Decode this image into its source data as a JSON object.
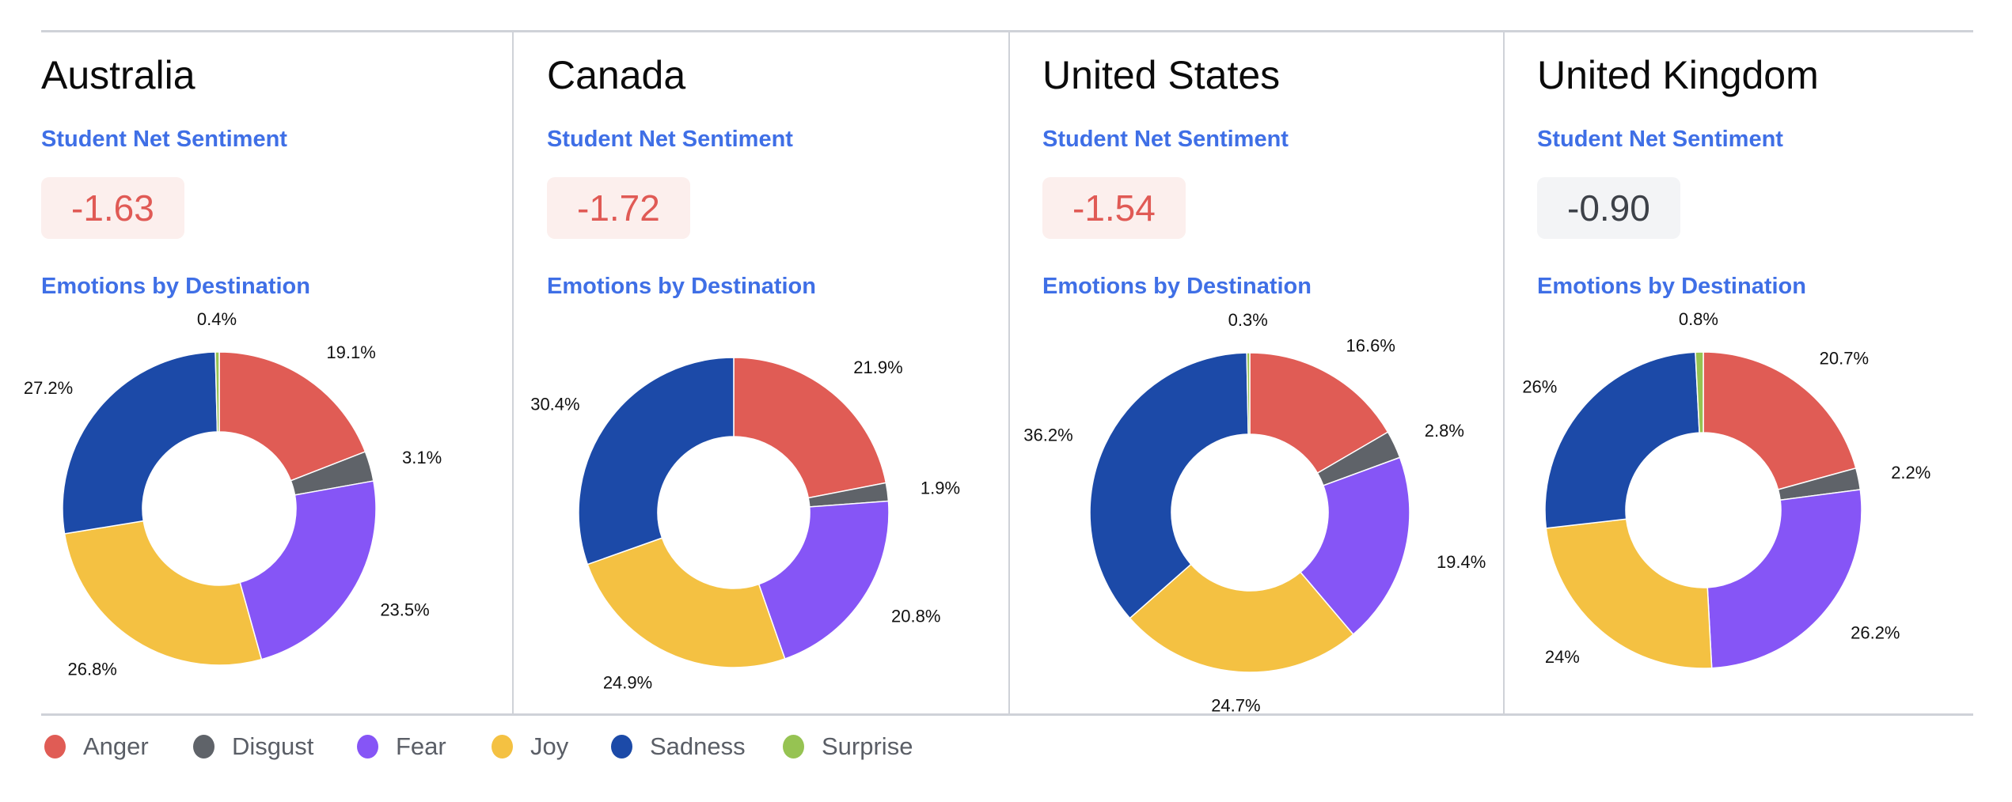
{
  "labels": {
    "sentiment_heading": "Student Net Sentiment",
    "emotions_heading": "Emotions by Destination"
  },
  "colors": {
    "heading": "#3f6fe6",
    "negative_score_text": "#e05a55",
    "negative_score_bg": "#fcefed",
    "neutral_score_text": "#3d4148",
    "neutral_score_bg": "#f3f4f6"
  },
  "panels": [
    {
      "country": "Australia",
      "sentiment": "-1.63",
      "tone": "negative"
    },
    {
      "country": "Canada",
      "sentiment": "-1.72",
      "tone": "negative"
    },
    {
      "country": "United States",
      "sentiment": "-1.54",
      "tone": "negative"
    },
    {
      "country": "United Kingdom",
      "sentiment": "-0.90",
      "tone": "neutral"
    }
  ],
  "legend": [
    {
      "label": "Anger",
      "color": "#e05c55"
    },
    {
      "label": "Disgust",
      "color": "#5f6369"
    },
    {
      "label": "Fear",
      "color": "#8655f6"
    },
    {
      "label": "Joy",
      "color": "#f4c142"
    },
    {
      "label": "Sadness",
      "color": "#1c4aa8"
    },
    {
      "label": "Surprise",
      "color": "#96c352"
    }
  ],
  "chart_data": [
    {
      "type": "pie",
      "variant": "donut",
      "title": "Australia",
      "categories": [
        "Anger",
        "Disgust",
        "Fear",
        "Joy",
        "Sadness",
        "Surprise"
      ],
      "values": [
        19.1,
        3.1,
        23.5,
        26.8,
        27.2,
        0.4
      ],
      "value_labels": [
        "19.1%",
        "3.1%",
        "23.5%",
        "26.8%",
        "27.2%",
        "0.4%"
      ]
    },
    {
      "type": "pie",
      "variant": "donut",
      "title": "Canada",
      "categories": [
        "Anger",
        "Disgust",
        "Fear",
        "Joy",
        "Sadness",
        "Surprise"
      ],
      "values": [
        21.9,
        1.9,
        20.8,
        24.9,
        30.4,
        0
      ],
      "value_labels": [
        "21.9%",
        "1.9%",
        "20.8%",
        "24.9%",
        "30.4%",
        ""
      ]
    },
    {
      "type": "pie",
      "variant": "donut",
      "title": "United States",
      "categories": [
        "Anger",
        "Disgust",
        "Fear",
        "Joy",
        "Sadness",
        "Surprise"
      ],
      "values": [
        16.6,
        2.8,
        19.4,
        24.7,
        36.2,
        0.3
      ],
      "value_labels": [
        "16.6%",
        "2.8%",
        "19.4%",
        "24.7%",
        "36.2%",
        "0.3%"
      ]
    },
    {
      "type": "pie",
      "variant": "donut",
      "title": "United Kingdom",
      "categories": [
        "Anger",
        "Disgust",
        "Fear",
        "Joy",
        "Sadness",
        "Surprise"
      ],
      "values": [
        20.7,
        2.2,
        26.2,
        24,
        26,
        0.8
      ],
      "value_labels": [
        "20.7%",
        "2.2%",
        "26.2%",
        "24%",
        "26%",
        "0.8%"
      ]
    }
  ]
}
